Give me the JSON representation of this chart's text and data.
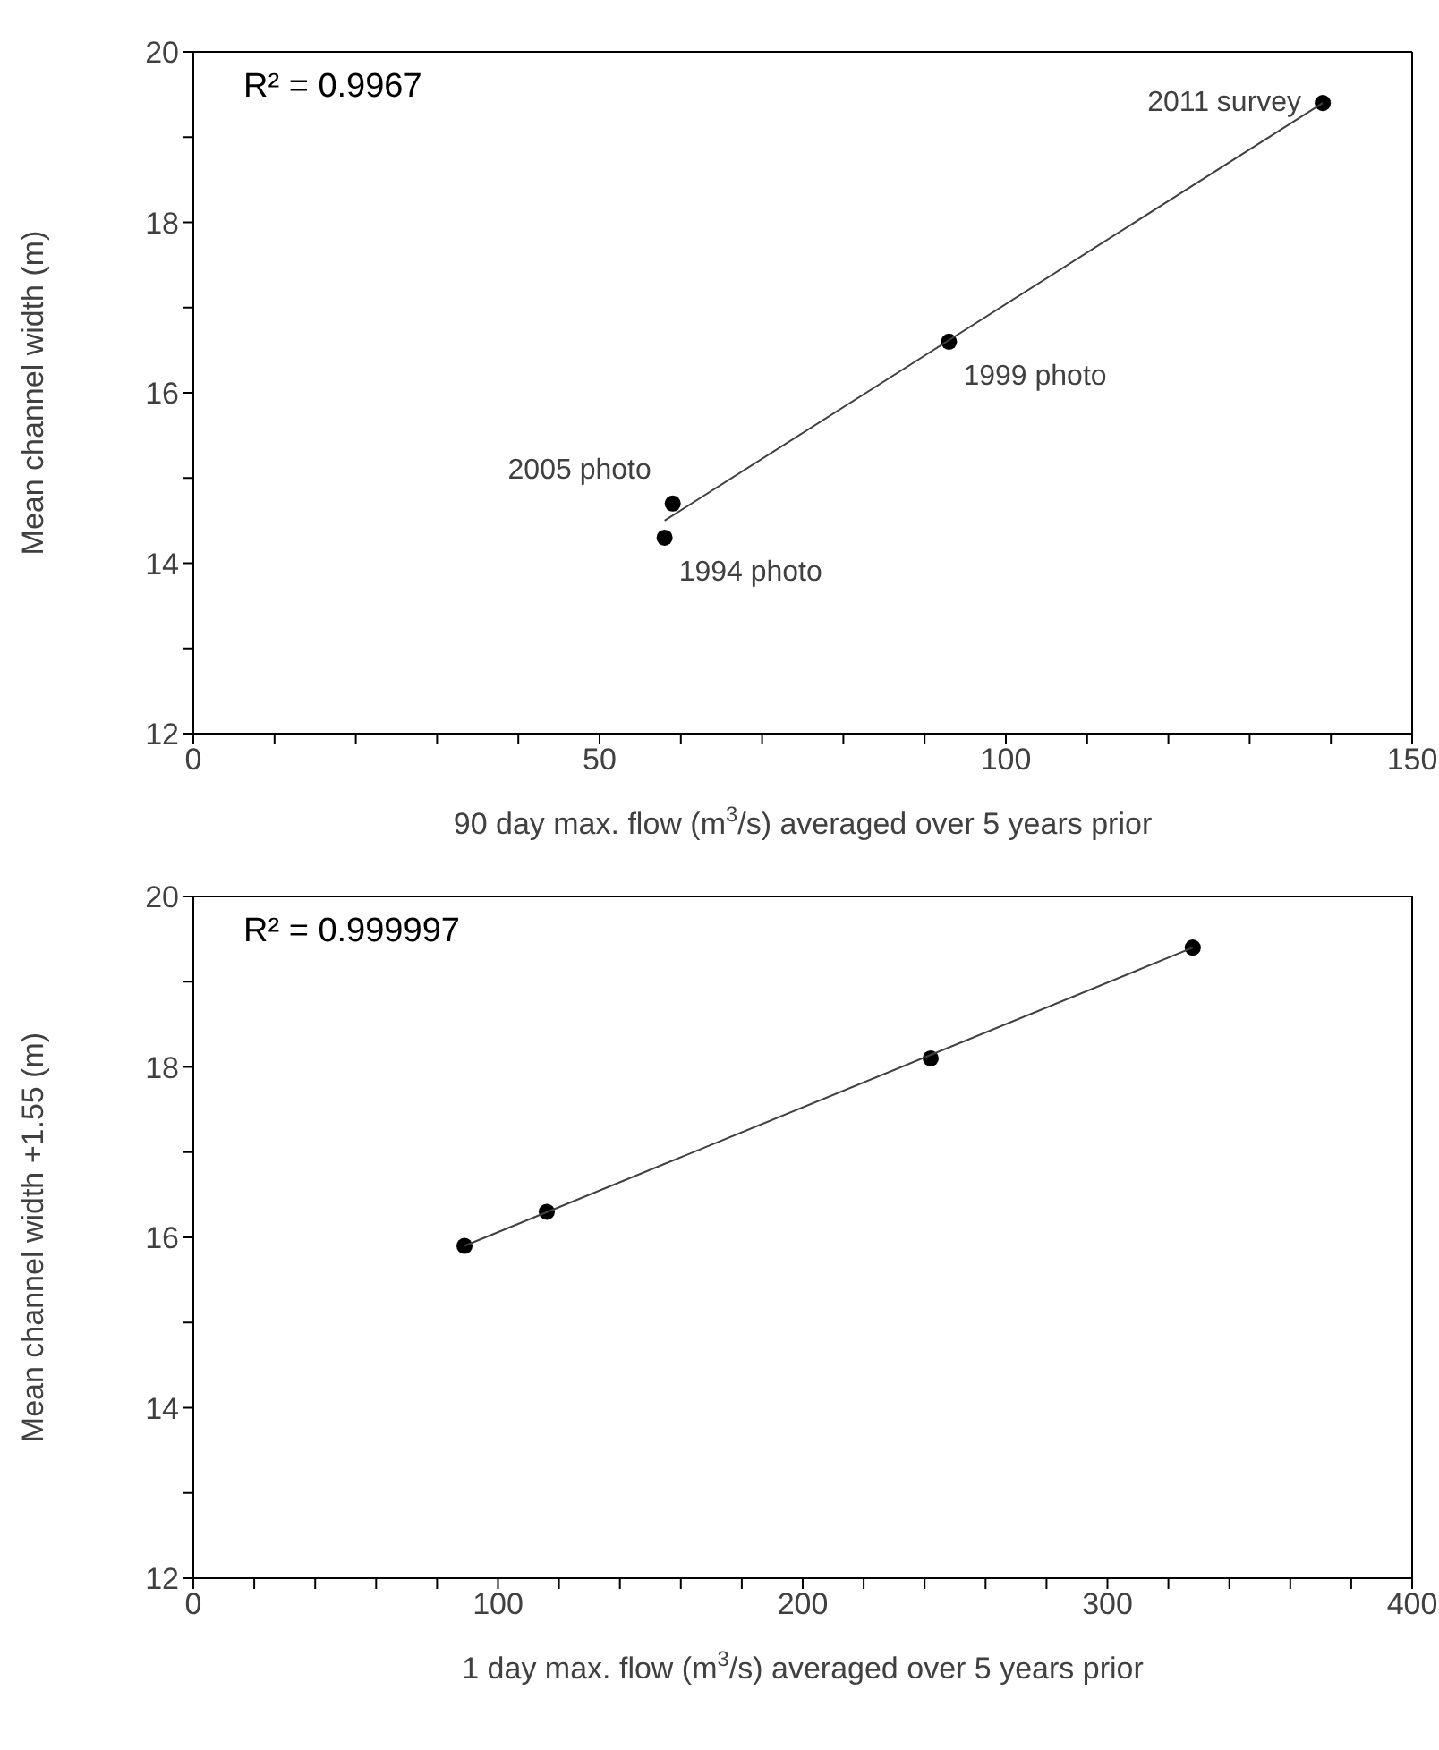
{
  "chart_data": [
    {
      "type": "scatter",
      "xlabel": "90 day max. flow (m$^{3}$/s) averaged over 5 years prior",
      "ylabel": "Mean channel width (m)",
      "legend": false,
      "xlim": [
        0,
        150
      ],
      "xticks": [
        0,
        {
          "value": 10,
          "label": null
        },
        {
          "value": 20,
          "label": null
        },
        {
          "value": 30,
          "label": null
        },
        {
          "value": 40,
          "label": null
        },
        50,
        {
          "value": 60,
          "label": null
        },
        {
          "value": 70,
          "label": null
        },
        {
          "value": 80,
          "label": null
        },
        {
          "value": 90,
          "label": null
        },
        100,
        {
          "value": 110,
          "label": null
        },
        {
          "value": 120,
          "label": null
        },
        {
          "value": 130,
          "label": null
        },
        {
          "value": 140,
          "label": null
        },
        150
      ],
      "ylim": [
        12,
        20
      ],
      "yticks": [
        12,
        {
          "value": 13,
          "label": null
        },
        14,
        {
          "value": 15,
          "label": null
        },
        16,
        {
          "value": 17,
          "label": null
        },
        18,
        {
          "value": 19,
          "label": null
        },
        20
      ],
      "series": [
        {
          "color": "#000000",
          "marker": "circle",
          "x": [
            58,
            59,
            93,
            139
          ],
          "values": [
            14.3,
            14.7,
            16.6,
            19.4
          ]
        },
        {
          "type": "line",
          "marker": "none",
          "color": "#404040",
          "x": [
            58,
            139
          ],
          "values": [
            14.5,
            19.4
          ]
        }
      ],
      "annotations": [
        "R² = 0.9967",
        {
          "text": "1994 photo",
          "x": 58,
          "y": 14.3
        },
        {
          "text": "2005 photo",
          "x": 59,
          "y": 14.7
        },
        {
          "text": "1999 photo",
          "x": 93,
          "y": 16.6
        },
        {
          "text": "2011 survey",
          "x": 139,
          "y": 19.4
        }
      ]
    },
    {
      "type": "scatter",
      "xlabel": "1 day max. flow (m$^{3}$/s) averaged over 5 years prior",
      "ylabel": "Mean channel width +1.55 (m)",
      "legend": false,
      "xlim": [
        0,
        400
      ],
      "xticks": [
        0,
        {
          "value": 20,
          "label": null
        },
        {
          "value": 40,
          "label": null
        },
        {
          "value": 60,
          "label": null
        },
        {
          "value": 80,
          "label": null
        },
        100,
        {
          "value": 120,
          "label": null
        },
        {
          "value": 140,
          "label": null
        },
        {
          "value": 160,
          "label": null
        },
        {
          "value": 180,
          "label": null
        },
        200,
        {
          "value": 220,
          "label": null
        },
        {
          "value": 240,
          "label": null
        },
        {
          "value": 260,
          "label": null
        },
        {
          "value": 280,
          "label": null
        },
        300,
        {
          "value": 320,
          "label": null
        },
        {
          "value": 340,
          "label": null
        },
        {
          "value": 360,
          "label": null
        },
        {
          "value": 380,
          "label": null
        },
        400
      ],
      "ylim": [
        12,
        20
      ],
      "yticks": [
        12,
        {
          "value": 13,
          "label": null
        },
        14,
        {
          "value": 15,
          "label": null
        },
        16,
        {
          "value": 17,
          "label": null
        },
        18,
        {
          "value": 19,
          "label": null
        },
        20
      ],
      "series": [
        {
          "color": "#000000",
          "marker": "circle",
          "x": [
            89,
            116,
            242,
            328
          ],
          "values": [
            15.9,
            16.3,
            18.1,
            19.4
          ]
        },
        {
          "type": "line",
          "marker": "none",
          "color": "#404040",
          "x": [
            89,
            328
          ],
          "values": [
            15.9,
            19.4
          ]
        }
      ],
      "annotations": [
        "R² = 0.999997"
      ]
    }
  ]
}
